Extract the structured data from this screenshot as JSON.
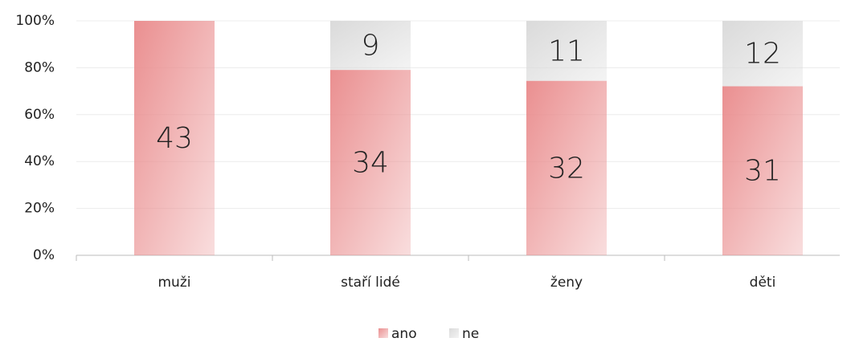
{
  "chart_data": {
    "type": "bar",
    "stacked": "percent",
    "categories": [
      "muži",
      "staří lidé",
      "ženy",
      "děti"
    ],
    "series": [
      {
        "name": "ano",
        "color": "#ea8f90",
        "values": [
          43,
          34,
          32,
          31
        ]
      },
      {
        "name": "ne",
        "color": "#dadada",
        "values": [
          0,
          9,
          11,
          12
        ]
      }
    ],
    "ylim": [
      0,
      100
    ],
    "yticks": [
      {
        "value": 0,
        "label": "0%"
      },
      {
        "value": 20,
        "label": "20%"
      },
      {
        "value": 40,
        "label": "40%"
      },
      {
        "value": 60,
        "label": "60%"
      },
      {
        "value": 80,
        "label": "80%"
      },
      {
        "value": 100,
        "label": "100%"
      }
    ],
    "grid": true,
    "legend": "bottom"
  }
}
